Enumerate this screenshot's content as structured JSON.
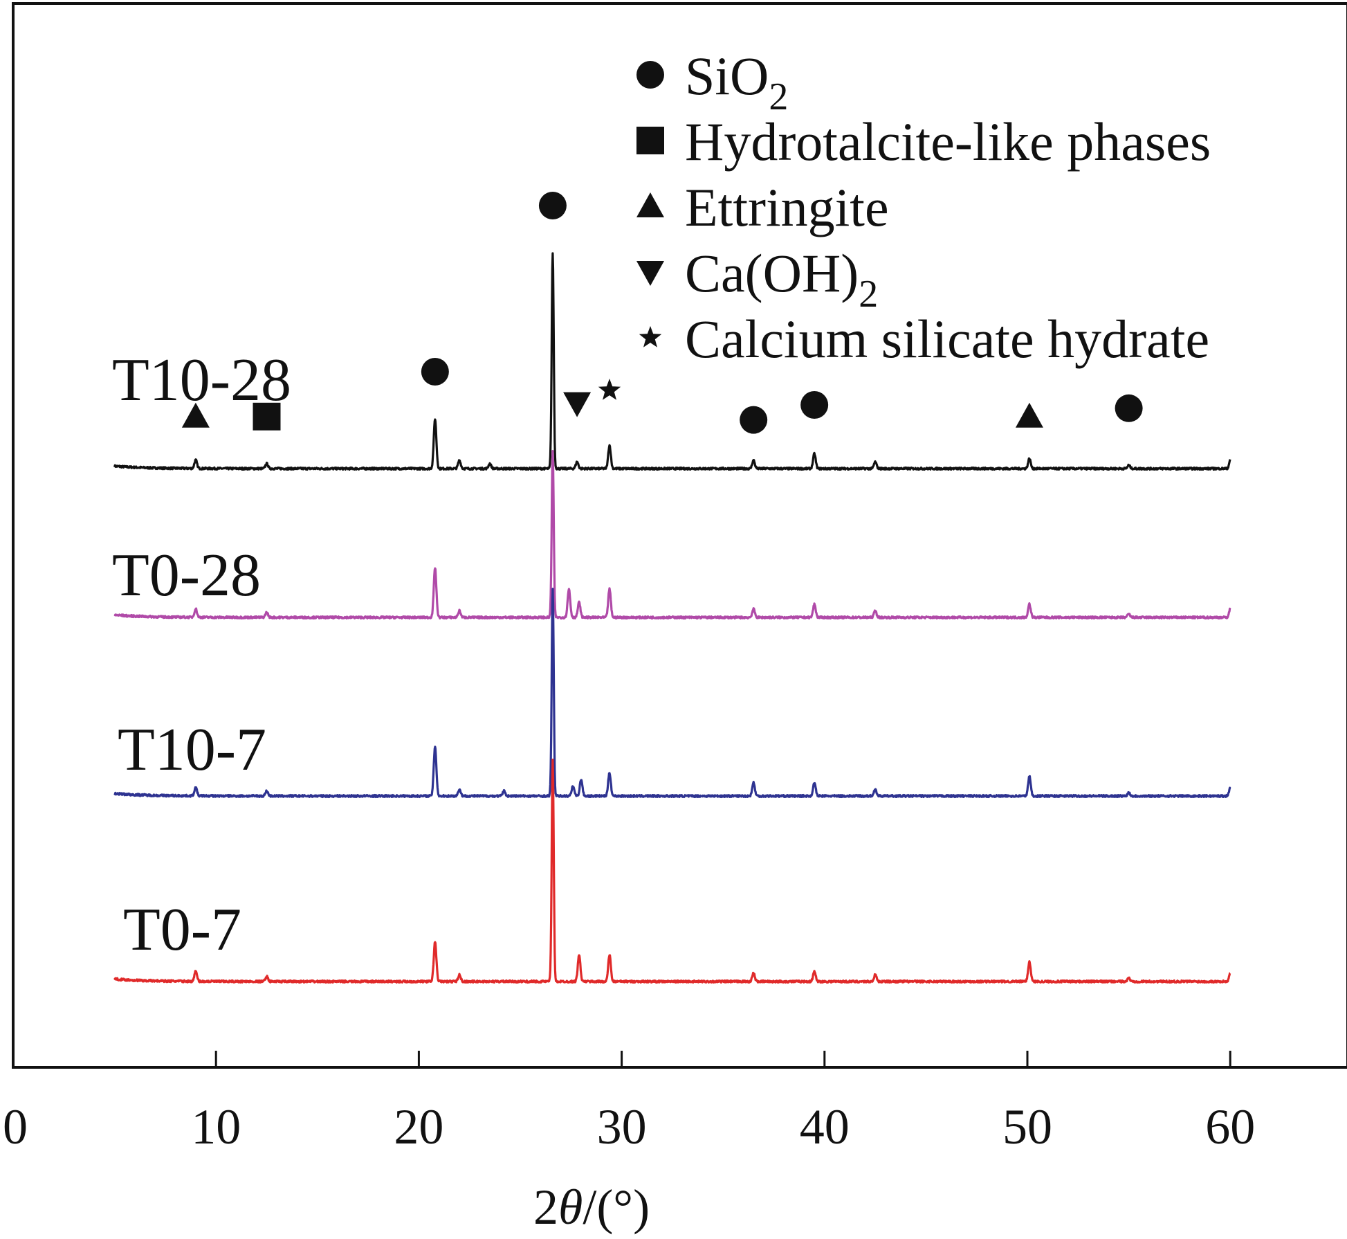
{
  "chart_data": {
    "type": "line",
    "title": "",
    "xlabel": {
      "prefix": "2",
      "theta": "θ",
      "suffix": "/(°)"
    },
    "ylabel": "",
    "xlim": [
      0,
      65
    ],
    "x_ticks": [
      0,
      10,
      20,
      30,
      40,
      50,
      60
    ],
    "x_tick_labels": [
      "0",
      "10",
      "20",
      "30",
      "40",
      "50",
      "60"
    ],
    "grid": false,
    "legend": {
      "placement": "top-right",
      "entries": [
        {
          "symbol": "circle",
          "base": "SiO",
          "sub": "2",
          "after": ""
        },
        {
          "symbol": "square",
          "base": "Hydrotalcite-like phases",
          "sub": "",
          "after": ""
        },
        {
          "symbol": "triangle-up",
          "base": "Ettringite",
          "sub": "",
          "after": ""
        },
        {
          "symbol": "triangle-down",
          "base": "Ca(OH)",
          "sub": "2",
          "after": ""
        },
        {
          "symbol": "star",
          "base": "Calcium silicate hydrate",
          "sub": "",
          "after": ""
        }
      ]
    },
    "x_range": [
      5,
      60
    ],
    "series": [
      {
        "name": "T10-28",
        "color": "#111111",
        "offset": 3,
        "peaks": [
          [
            9.0,
            0.05
          ],
          [
            12.5,
            0.03
          ],
          [
            20.8,
            0.3
          ],
          [
            22.0,
            0.05
          ],
          [
            23.5,
            0.03
          ],
          [
            26.6,
            1.3
          ],
          [
            27.8,
            0.04
          ],
          [
            29.4,
            0.14
          ],
          [
            36.5,
            0.05
          ],
          [
            39.5,
            0.09
          ],
          [
            42.5,
            0.04
          ],
          [
            50.1,
            0.06
          ],
          [
            55.0,
            0.02
          ]
        ]
      },
      {
        "name": "T0-28",
        "color": "#b04aa8",
        "offset": 2,
        "peaks": [
          [
            9.0,
            0.05
          ],
          [
            12.5,
            0.03
          ],
          [
            20.8,
            0.3
          ],
          [
            22.0,
            0.04
          ],
          [
            26.6,
            1.0
          ],
          [
            27.4,
            0.17
          ],
          [
            27.9,
            0.09
          ],
          [
            29.4,
            0.17
          ],
          [
            36.5,
            0.05
          ],
          [
            39.5,
            0.08
          ],
          [
            42.5,
            0.04
          ],
          [
            50.1,
            0.08
          ],
          [
            55.0,
            0.02
          ]
        ]
      },
      {
        "name": "T10-7",
        "color": "#2e3391",
        "offset": 1,
        "peaks": [
          [
            9.0,
            0.05
          ],
          [
            12.5,
            0.03
          ],
          [
            20.8,
            0.3
          ],
          [
            22.0,
            0.04
          ],
          [
            24.2,
            0.03
          ],
          [
            26.6,
            1.25
          ],
          [
            27.6,
            0.06
          ],
          [
            28.0,
            0.1
          ],
          [
            29.4,
            0.14
          ],
          [
            36.5,
            0.08
          ],
          [
            39.5,
            0.08
          ],
          [
            42.5,
            0.04
          ],
          [
            50.1,
            0.12
          ],
          [
            55.0,
            0.02
          ]
        ]
      },
      {
        "name": "T0-7",
        "color": "#e02a2a",
        "offset": 0,
        "peaks": [
          [
            9.0,
            0.06
          ],
          [
            12.5,
            0.03
          ],
          [
            20.8,
            0.24
          ],
          [
            22.0,
            0.04
          ],
          [
            26.6,
            1.33
          ],
          [
            27.9,
            0.16
          ],
          [
            29.4,
            0.16
          ],
          [
            36.5,
            0.05
          ],
          [
            39.5,
            0.06
          ],
          [
            42.5,
            0.04
          ],
          [
            50.1,
            0.12
          ],
          [
            55.0,
            0.02
          ]
        ]
      }
    ],
    "annotations": [
      {
        "symbol": "triangle-up",
        "x": 9.0,
        "series": "T10-28",
        "level": 0.23
      },
      {
        "symbol": "square",
        "x": 12.5,
        "series": "T10-28",
        "level": 0.23
      },
      {
        "symbol": "circle",
        "x": 20.8,
        "series": "T10-28",
        "level": 0.5
      },
      {
        "symbol": "circle",
        "x": 26.6,
        "series": "T10-28",
        "level": 1.5
      },
      {
        "symbol": "triangle-down",
        "x": 27.8,
        "series": "T10-28",
        "level": 0.31
      },
      {
        "symbol": "star",
        "x": 29.4,
        "series": "T10-28",
        "level": 0.4
      },
      {
        "symbol": "circle",
        "x": 36.5,
        "series": "T10-28",
        "level": 0.21
      },
      {
        "symbol": "circle",
        "x": 39.5,
        "series": "T10-28",
        "level": 0.3
      },
      {
        "symbol": "triangle-up",
        "x": 50.1,
        "series": "T10-28",
        "level": 0.23
      },
      {
        "symbol": "circle",
        "x": 55.0,
        "series": "T10-28",
        "level": 0.28
      }
    ]
  }
}
